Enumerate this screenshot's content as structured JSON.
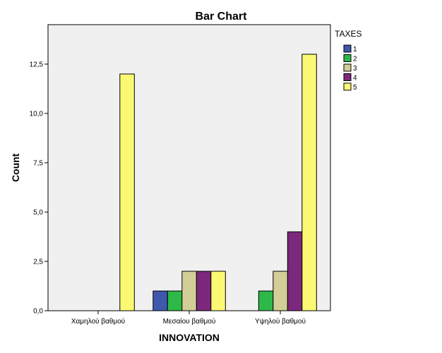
{
  "chart_data": {
    "type": "bar",
    "title": "Bar Chart",
    "xlabel": "INNOVATION",
    "ylabel": "Count",
    "categories": [
      "Χαμηλού βαθμού",
      "Μεσαίου βαθμού",
      "Υψηλού βαθμού"
    ],
    "ylim": [
      0,
      14.5
    ],
    "yticks": [
      "0,0",
      "2,5",
      "5,0",
      "7,5",
      "10,0",
      "12,5"
    ],
    "ytick_values": [
      0,
      2.5,
      5,
      7.5,
      10,
      12.5
    ],
    "legend_title": "TAXES",
    "legend_position": "top-right",
    "grid": false,
    "plot_background": "#f0f0f0",
    "series": [
      {
        "name": "1",
        "color": "#3e58ac",
        "values": [
          0,
          1,
          0
        ]
      },
      {
        "name": "2",
        "color": "#2eb848",
        "values": [
          0,
          1,
          1
        ]
      },
      {
        "name": "3",
        "color": "#d3ce97",
        "values": [
          0,
          2,
          2
        ]
      },
      {
        "name": "4",
        "color": "#7c287d",
        "values": [
          0,
          2,
          4
        ]
      },
      {
        "name": "5",
        "color": "#fbf873",
        "values": [
          12,
          2,
          13
        ]
      }
    ]
  }
}
